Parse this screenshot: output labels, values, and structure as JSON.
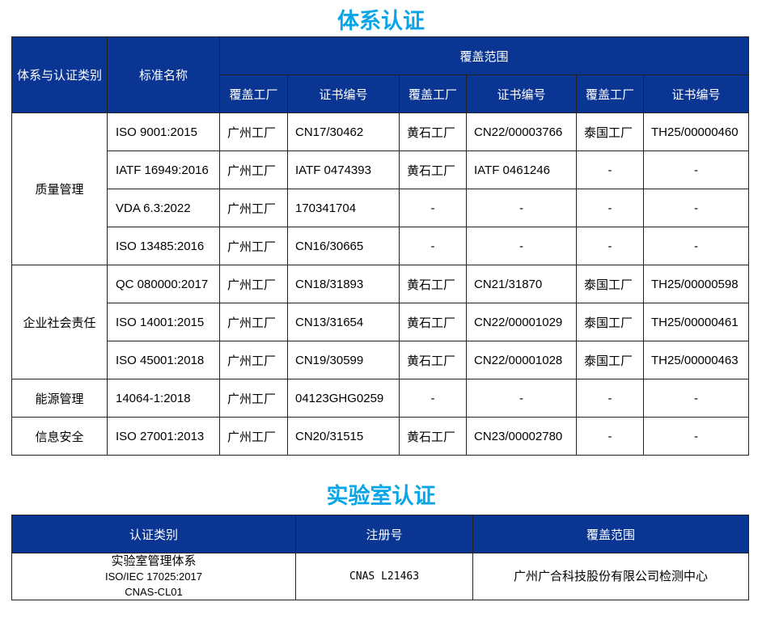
{
  "system": {
    "title": "体系认证",
    "headers": {
      "category": "体系与认证类别",
      "standard": "标准名称",
      "coverage": "覆盖范围",
      "sub": [
        "覆盖工厂",
        "证书编号",
        "覆盖工厂",
        "证书编号",
        "覆盖工厂",
        "证书编号"
      ]
    },
    "groups": [
      {
        "category": "质量管理",
        "rows": [
          {
            "standard": "ISO 9001:2015",
            "cells": [
              "广州工厂",
              "CN17/30462",
              "黄石工厂",
              "CN22/00003766",
              "泰国工厂",
              "TH25/00000460"
            ]
          },
          {
            "standard": "IATF 16949:2016",
            "cells": [
              "广州工厂",
              "IATF 0474393",
              "黄石工厂",
              "IATF 0461246",
              "-",
              "-"
            ]
          },
          {
            "standard": "VDA 6.3:2022",
            "cells": [
              "广州工厂",
              "170341704",
              "-",
              "-",
              "-",
              "-"
            ]
          },
          {
            "standard": "ISO 13485:2016",
            "cells": [
              "广州工厂",
              "CN16/30665",
              "-",
              "-",
              "-",
              "-"
            ]
          }
        ]
      },
      {
        "category": "企业社会责任",
        "rows": [
          {
            "standard": "QC 080000:2017",
            "cells": [
              "广州工厂",
              "CN18/31893",
              "黄石工厂",
              "CN21/31870",
              "泰国工厂",
              "TH25/00000598"
            ]
          },
          {
            "standard": "ISO 14001:2015",
            "cells": [
              "广州工厂",
              "CN13/31654",
              "黄石工厂",
              "CN22/00001029",
              "泰国工厂",
              "TH25/00000461"
            ]
          },
          {
            "standard": "ISO 45001:2018",
            "cells": [
              "广州工厂",
              "CN19/30599",
              "黄石工厂",
              "CN22/00001028",
              "泰国工厂",
              "TH25/00000463"
            ]
          }
        ]
      },
      {
        "category": "能源管理",
        "rows": [
          {
            "standard": "14064-1:2018",
            "cells": [
              "广州工厂",
              "04123GHG0259",
              "-",
              "-",
              "-",
              "-"
            ]
          }
        ]
      },
      {
        "category": "信息安全",
        "rows": [
          {
            "standard": "ISO 27001:2013",
            "cells": [
              "广州工厂",
              "CN20/31515",
              "黄石工厂",
              "CN23/00002780",
              "-",
              "-"
            ]
          }
        ]
      }
    ]
  },
  "lab": {
    "title": "实验室认证",
    "headers": [
      "认证类别",
      "注册号",
      "覆盖范围"
    ],
    "row": {
      "category_lines": [
        "实验室管理体系",
        "ISO/IEC 17025:2017",
        "CNAS-CL01"
      ],
      "registration": "CNAS L21463",
      "coverage": "广州广合科技股份有限公司检测中心"
    }
  }
}
